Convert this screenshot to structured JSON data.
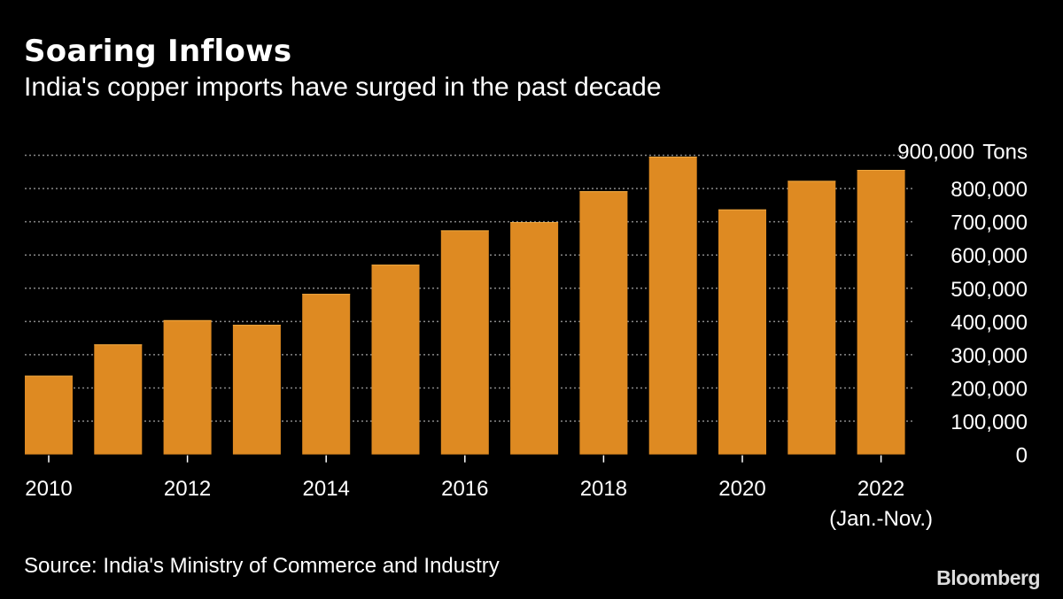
{
  "header": {
    "title": "Soaring Inflows",
    "subtitle": "India's copper imports have surged in the past decade"
  },
  "chart_data": {
    "type": "bar",
    "categories": [
      "2010",
      "2011",
      "2012",
      "2013",
      "2014",
      "2015",
      "2016",
      "2017",
      "2018",
      "2019",
      "2020",
      "2021",
      "2022"
    ],
    "values": [
      237000,
      331000,
      404000,
      390000,
      483000,
      571000,
      674000,
      699000,
      792000,
      896000,
      737000,
      823000,
      856000
    ],
    "x_tick_labels": [
      "2010",
      "2012",
      "2014",
      "2016",
      "2018",
      "2020",
      "2022"
    ],
    "x_tick_note": "(Jan.-Nov.)",
    "y_ticks": [
      "0",
      "100,000",
      "200,000",
      "300,000",
      "400,000",
      "500,000",
      "600,000",
      "700,000",
      "800,000",
      "900,000"
    ],
    "y_unit": "Tons",
    "ylim": [
      0,
      900000
    ],
    "grid": true,
    "y_axis_position": "right",
    "bar_color": "#DE8A22"
  },
  "footer": {
    "source": "Source: India's Ministry of Commerce and Industry",
    "logo": "Bloomberg"
  }
}
